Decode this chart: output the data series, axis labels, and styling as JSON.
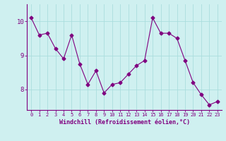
{
  "x": [
    0,
    1,
    2,
    3,
    4,
    5,
    6,
    7,
    8,
    9,
    10,
    11,
    12,
    13,
    14,
    15,
    16,
    17,
    18,
    19,
    20,
    21,
    22,
    23
  ],
  "y": [
    10.1,
    9.6,
    9.65,
    9.2,
    8.9,
    9.6,
    8.75,
    8.15,
    8.55,
    7.9,
    8.15,
    8.2,
    8.45,
    8.7,
    8.85,
    10.1,
    9.65,
    9.65,
    9.5,
    8.85,
    8.2,
    7.85,
    7.55,
    7.65
  ],
  "xlabel": "Windchill (Refroidissement éolien,°C)",
  "ylim": [
    7.4,
    10.5
  ],
  "xlim": [
    -0.5,
    23.5
  ],
  "yticks": [
    8,
    9,
    10
  ],
  "xticks": [
    0,
    1,
    2,
    3,
    4,
    5,
    6,
    7,
    8,
    9,
    10,
    11,
    12,
    13,
    14,
    15,
    16,
    17,
    18,
    19,
    20,
    21,
    22,
    23
  ],
  "line_color": "#800080",
  "marker": "D",
  "marker_size": 2.5,
  "bg_color": "#cff0f0",
  "grid_color": "#aadddd",
  "spine_color": "#800080",
  "xlabel_fontsize": 6.0,
  "xtick_fontsize": 5.0,
  "ytick_fontsize": 6.5
}
